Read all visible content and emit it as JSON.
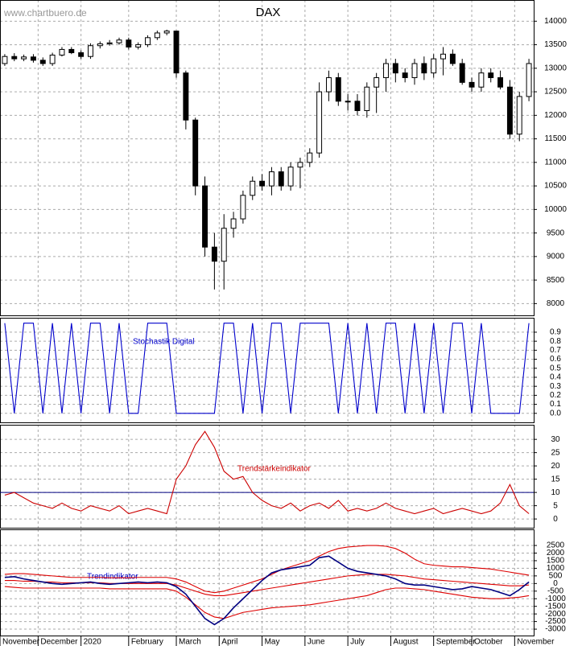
{
  "watermark": "www.chartbuero.de",
  "chart_data": [
    {
      "type": "candlestick",
      "title": "DAX",
      "xlim": [
        0,
        56
      ],
      "ylim": [
        7750,
        14450
      ],
      "yticks": [
        8000,
        8500,
        9000,
        9500,
        10000,
        10500,
        11000,
        11500,
        12000,
        12500,
        13000,
        13500,
        14000
      ],
      "grid": true,
      "open": [
        13100,
        13250,
        13200,
        13240,
        13170,
        13100,
        13280,
        13400,
        13330,
        13250,
        13480,
        13520,
        13540,
        13600,
        13450,
        13500,
        13650,
        13750,
        13790,
        12900,
        11900,
        10500,
        9200,
        8900,
        9600,
        9800,
        10300,
        10600,
        10500,
        10800,
        10500,
        10900,
        11000,
        11200,
        12500,
        12800,
        12300,
        12300,
        12100,
        12600,
        12800,
        13100,
        12900,
        12800,
        13100,
        12900,
        13200,
        13300,
        13100,
        12700,
        12600,
        12900,
        12800,
        12600,
        11600,
        12400
      ],
      "high": [
        13300,
        13320,
        13290,
        13300,
        13230,
        13330,
        13450,
        13450,
        13380,
        13530,
        13570,
        13600,
        13650,
        13650,
        13550,
        13700,
        13800,
        13820,
        13800,
        12950,
        11950,
        10700,
        9500,
        9900,
        9950,
        10400,
        10700,
        10750,
        10900,
        10900,
        11000,
        11100,
        11300,
        12700,
        12950,
        12900,
        12450,
        12450,
        12700,
        12900,
        13200,
        13200,
        13000,
        13200,
        13250,
        13300,
        13450,
        13400,
        13200,
        12800,
        13000,
        13000,
        12950,
        12750,
        12500,
        13200
      ],
      "low": [
        13050,
        13150,
        13150,
        13120,
        13050,
        13050,
        13250,
        13300,
        13200,
        13200,
        13420,
        13480,
        13500,
        13400,
        13400,
        13450,
        13600,
        13700,
        12800,
        11700,
        10300,
        9000,
        8300,
        8300,
        9400,
        9700,
        10200,
        10400,
        10300,
        10400,
        10400,
        10450,
        10900,
        11100,
        12300,
        12200,
        12100,
        12000,
        11950,
        12050,
        12500,
        12700,
        12700,
        12650,
        12750,
        12800,
        12850,
        13050,
        12650,
        12500,
        12500,
        12700,
        12550,
        11500,
        11450,
        12300
      ],
      "close": [
        13250,
        13200,
        13240,
        13170,
        13100,
        13280,
        13400,
        13330,
        13250,
        13480,
        13520,
        13540,
        13600,
        13450,
        13500,
        13650,
        13750,
        13790,
        12900,
        11900,
        10500,
        9200,
        8900,
        9600,
        9800,
        10300,
        10600,
        10500,
        10800,
        10500,
        10900,
        11000,
        11200,
        12500,
        12800,
        12300,
        12300,
        12100,
        12600,
        12800,
        13100,
        12900,
        12800,
        13100,
        12900,
        13200,
        13300,
        13100,
        12700,
        12600,
        12900,
        12800,
        12600,
        11600,
        12400,
        13100
      ],
      "up_color": "#ffffff",
      "down_color": "#000000"
    },
    {
      "type": "line",
      "label": "Stochastik Digital",
      "xlim": [
        0,
        56
      ],
      "ylim": [
        -0.1,
        1.06
      ],
      "yticks": [
        {
          "value": 0,
          "label": "0.0"
        },
        0.1,
        0.2,
        0.3,
        0.4,
        0.5,
        0.6,
        0.7,
        0.8,
        0.9
      ],
      "grid": true,
      "series": [
        {
          "color": "#0000cc",
          "values": [
            1,
            0,
            1,
            1,
            0,
            1,
            0,
            1,
            0,
            1,
            1,
            0,
            1,
            0,
            0,
            1,
            1,
            1,
            0,
            0,
            0,
            0,
            0,
            1,
            1,
            0,
            1,
            0,
            1,
            1,
            0,
            1,
            1,
            1,
            1,
            0,
            1,
            0,
            1,
            0,
            1,
            1,
            0,
            1,
            0,
            1,
            0,
            1,
            1,
            0,
            1,
            0,
            0,
            0,
            0,
            1
          ]
        }
      ]
    },
    {
      "type": "line",
      "label": "Trendstärkeindikator",
      "xlim": [
        0,
        56
      ],
      "ylim": [
        -3.3,
        35.5
      ],
      "yticks": [
        0,
        5,
        10,
        15,
        20,
        25,
        30
      ],
      "grid": true,
      "hline": 10,
      "series": [
        {
          "color": "#cc0000",
          "values": [
            9,
            10,
            8,
            6,
            5,
            4,
            6,
            4,
            3,
            5,
            4,
            3,
            5,
            2,
            3,
            4,
            3,
            2,
            15,
            20,
            28,
            33,
            27,
            18,
            15,
            16,
            10,
            7,
            5,
            4,
            6,
            3,
            5,
            6,
            4,
            7,
            3,
            4,
            3,
            4,
            6,
            4,
            3,
            2,
            3,
            4,
            2,
            3,
            4,
            3,
            2,
            3,
            6,
            13,
            5,
            2
          ]
        }
      ]
    },
    {
      "type": "line",
      "label": "Trendindikator",
      "xlim": [
        0,
        56
      ],
      "ylim": [
        -3420,
        3560
      ],
      "yticks": [
        -3000,
        -2500,
        -2000,
        -1500,
        -1000,
        -500,
        0,
        500,
        1000,
        1500,
        2000,
        2500
      ],
      "grid": true,
      "xticks": [
        {
          "value": 0,
          "label": "November"
        },
        {
          "value": 4,
          "label": "December"
        },
        {
          "value": 8.5,
          "label": "2020"
        },
        {
          "value": 13.5,
          "label": "February"
        },
        {
          "value": 18.5,
          "label": "March"
        },
        {
          "value": 23,
          "label": "April"
        },
        {
          "value": 27.5,
          "label": "May"
        },
        {
          "value": 32,
          "label": "June"
        },
        {
          "value": 36.5,
          "label": "July"
        },
        {
          "value": 41,
          "label": "August"
        },
        {
          "value": 45.5,
          "label": "September"
        },
        {
          "value": 49.5,
          "label": "October"
        },
        {
          "value": 54,
          "label": "November"
        }
      ],
      "series": [
        {
          "color": "#dd0000",
          "values": [
            600,
            650,
            650,
            600,
            550,
            500,
            450,
            400,
            400,
            400,
            400,
            380,
            380,
            380,
            400,
            400,
            400,
            400,
            300,
            100,
            -200,
            -500,
            -600,
            -500,
            -300,
            -100,
            100,
            300,
            600,
            900,
            1100,
            1300,
            1500,
            1800,
            2100,
            2300,
            2400,
            2450,
            2500,
            2500,
            2450,
            2300,
            2000,
            1600,
            1300,
            1200,
            1150,
            1100,
            1100,
            1050,
            1000,
            950,
            850,
            750,
            650,
            550
          ]
        },
        {
          "color": "#dd0000",
          "values": [
            200,
            200,
            150,
            150,
            100,
            100,
            50,
            50,
            50,
            50,
            50,
            0,
            0,
            0,
            0,
            0,
            0,
            0,
            -100,
            -300,
            -500,
            -700,
            -800,
            -800,
            -700,
            -600,
            -500,
            -400,
            -300,
            -200,
            -100,
            0,
            100,
            200,
            300,
            400,
            500,
            550,
            600,
            600,
            600,
            550,
            500,
            400,
            300,
            250,
            200,
            150,
            100,
            50,
            0,
            -50,
            -100,
            -150,
            -150,
            -100
          ]
        },
        {
          "color": "#dd0000",
          "values": [
            -200,
            -250,
            -300,
            -300,
            -300,
            -300,
            -300,
            -300,
            -300,
            -300,
            -300,
            -350,
            -350,
            -350,
            -350,
            -350,
            -350,
            -350,
            -500,
            -900,
            -1400,
            -1900,
            -2200,
            -2300,
            -2100,
            -1900,
            -1800,
            -1700,
            -1600,
            -1550,
            -1500,
            -1450,
            -1400,
            -1300,
            -1200,
            -1100,
            -1000,
            -900,
            -800,
            -600,
            -400,
            -300,
            -300,
            -350,
            -400,
            -500,
            -600,
            -700,
            -800,
            -900,
            -950,
            -1000,
            -1000,
            -950,
            -900,
            -800
          ]
        },
        {
          "color": "#000080",
          "values": [
            400,
            450,
            300,
            200,
            100,
            0,
            -50,
            0,
            50,
            100,
            0,
            -50,
            0,
            50,
            100,
            50,
            100,
            50,
            -200,
            -700,
            -1500,
            -2300,
            -2700,
            -2300,
            -1600,
            -1000,
            -400,
            200,
            700,
            900,
            1000,
            1100,
            1200,
            1700,
            1800,
            1400,
            1000,
            800,
            700,
            600,
            500,
            300,
            0,
            -100,
            -100,
            -200,
            -300,
            -400,
            -350,
            -200,
            -300,
            -400,
            -600,
            -800,
            -400,
            100
          ]
        }
      ]
    }
  ]
}
